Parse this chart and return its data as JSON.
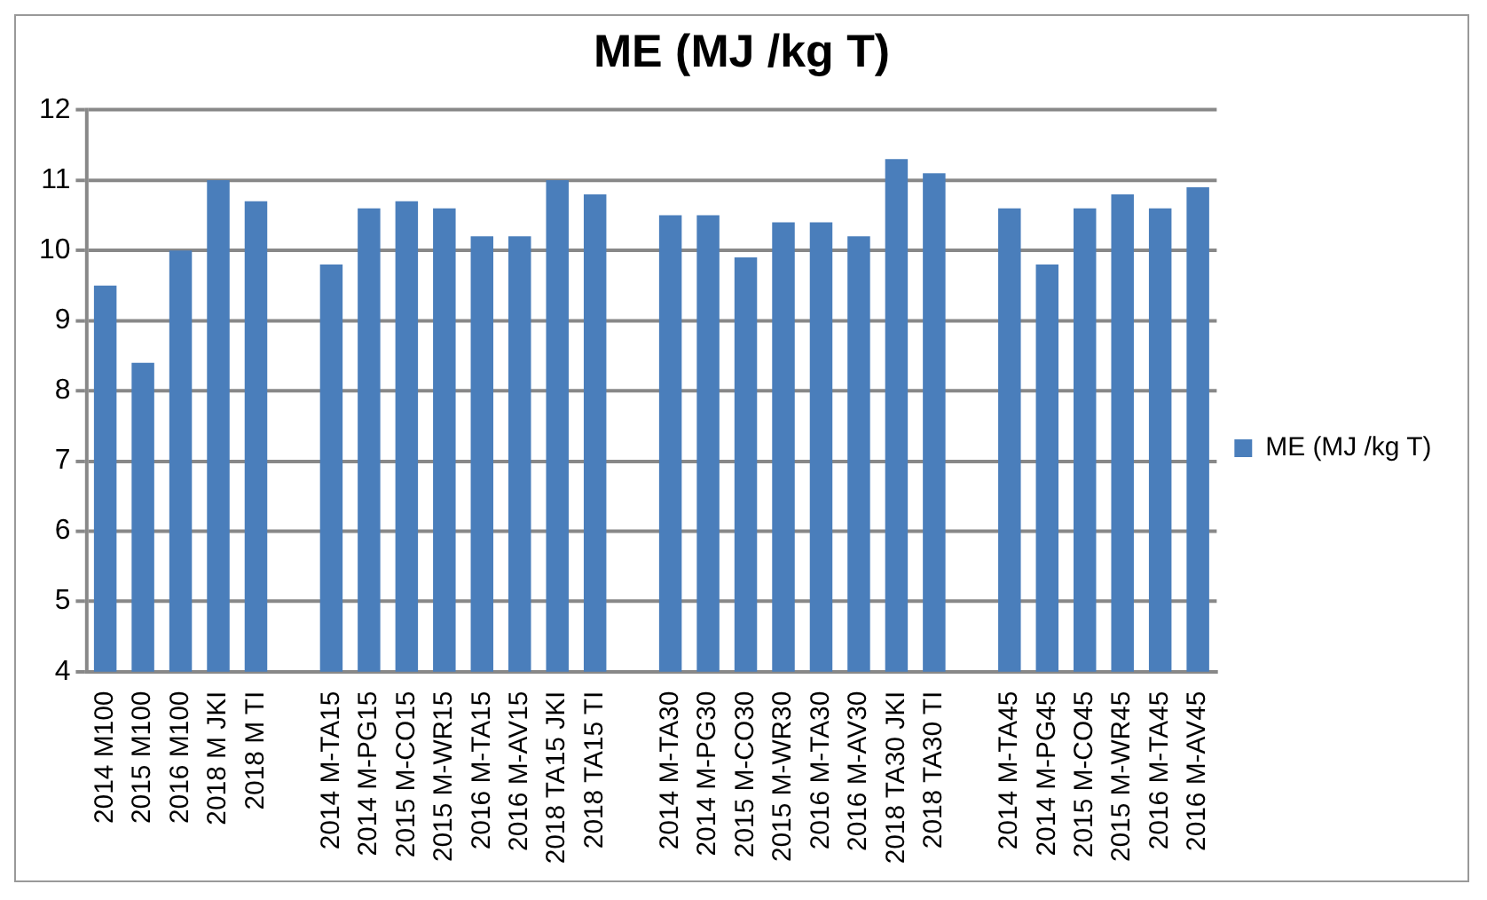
{
  "chart_data": {
    "type": "bar",
    "title": "ME (MJ /kg T)",
    "categories": [
      "2014 M100",
      "2015 M100",
      "2016 M100",
      "2018 M JKI",
      "2018 M TI",
      null,
      "2014 M-TA15",
      "2014 M-PG15",
      "2015 M-CO15",
      "2015 M-WR15",
      "2016 M-TA15",
      "2016 M-AV15",
      "2018 TA15 JKI",
      "2018 TA15 TI",
      null,
      "2014 M-TA30",
      "2014 M-PG30",
      "2015 M-CO30",
      "2015 M-WR30",
      "2016 M-TA30",
      "2016 M-AV30",
      "2018 TA30 JKI",
      "2018 TA30 TI",
      null,
      "2014 M-TA45",
      "2014 M-PG45",
      "2015 M-CO45",
      "2015 M-WR45",
      "2016 M-TA45",
      "2016 M-AV45"
    ],
    "series": [
      {
        "name": "ME (MJ /kg T)",
        "color": "#4a7ebb",
        "values": [
          9.5,
          8.4,
          10.0,
          11.0,
          10.7,
          null,
          9.8,
          10.6,
          10.7,
          10.6,
          10.2,
          10.2,
          11.0,
          10.8,
          null,
          10.5,
          10.5,
          9.9,
          10.4,
          10.4,
          10.2,
          11.3,
          11.1,
          null,
          10.6,
          9.8,
          10.6,
          10.8,
          10.6,
          10.9
        ]
      }
    ],
    "ylim": [
      4,
      12
    ],
    "yticks": [
      4,
      5,
      6,
      7,
      8,
      9,
      10,
      11,
      12
    ],
    "grid": "y",
    "legend": "right"
  }
}
